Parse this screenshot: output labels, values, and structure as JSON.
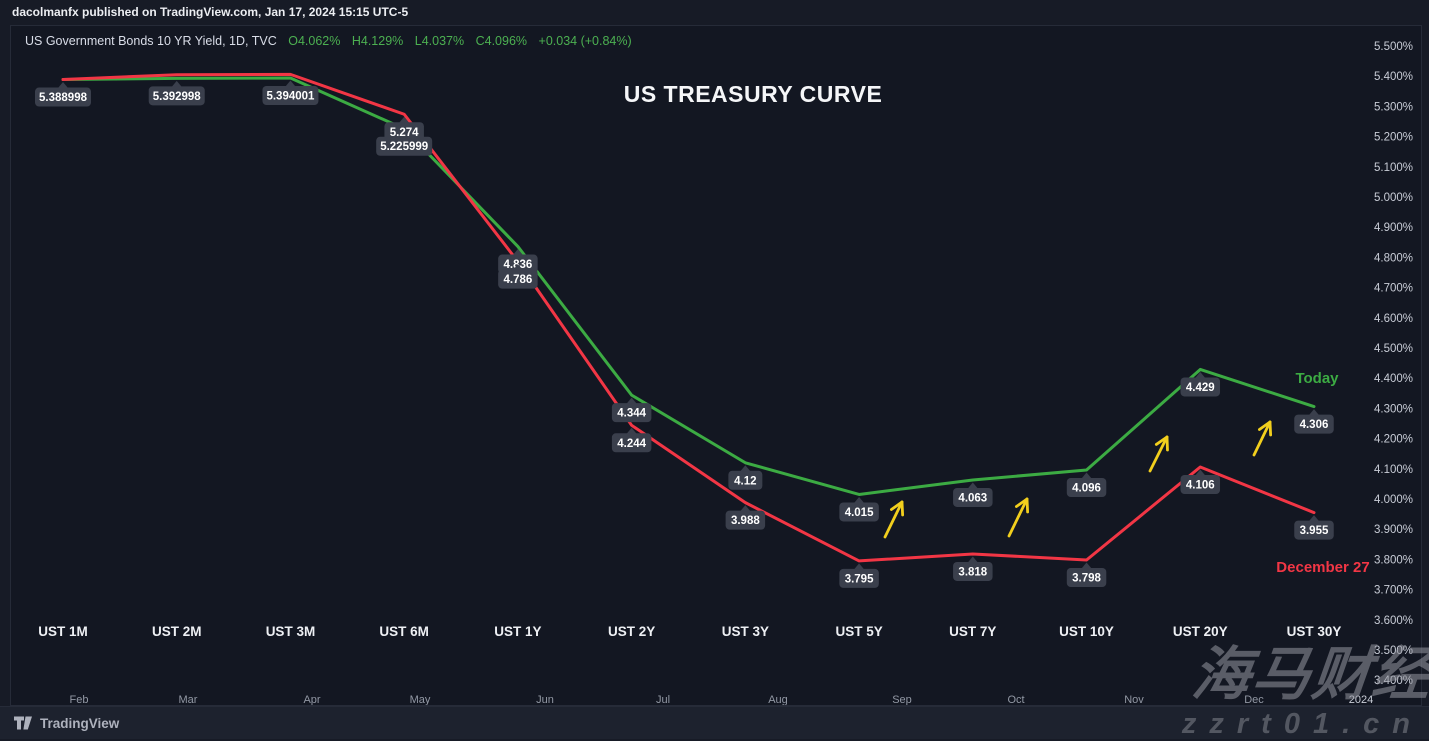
{
  "publisher_bar": {
    "text": "dacolmanfx published on TradingView.com, Jan 17, 2024 15:15 UTC-5"
  },
  "header": {
    "symbol": "US Government Bonds 10 YR Yield, 1D, TVC",
    "open": "O4.062%",
    "high": "H4.129%",
    "low": "L4.037%",
    "close": "C4.096%",
    "change": "+0.034 (+0.84%)"
  },
  "title": "US TREASURY CURVE",
  "chart_data": {
    "type": "line",
    "title": "US TREASURY CURVE",
    "categories": [
      "UST 1M",
      "UST 2M",
      "UST 3M",
      "UST 6M",
      "UST 1Y",
      "UST 2Y",
      "UST 3Y",
      "UST 5Y",
      "UST 7Y",
      "UST 10Y",
      "UST 20Y",
      "UST 30Y"
    ],
    "series": [
      {
        "name": "Today",
        "color": "#3cab43",
        "values": [
          5.388998,
          5.392998,
          5.394001,
          5.225999,
          4.836,
          4.344,
          4.12,
          4.015,
          4.063,
          4.096,
          4.429,
          4.306
        ],
        "point_labels": [
          "5.388998",
          "5.392998",
          "5.394001",
          "5.225999",
          "4.836",
          "4.344",
          "4.12",
          "4.015",
          "4.063",
          "4.096",
          "4.429",
          "4.306"
        ]
      },
      {
        "name": "December 27",
        "color": "#f23645",
        "values": [
          5.389,
          5.405,
          5.406,
          5.274,
          4.786,
          4.244,
          3.988,
          3.795,
          3.818,
          3.798,
          4.106,
          3.955
        ],
        "point_labels": [
          null,
          null,
          null,
          "5.274",
          "4.786",
          "4.244",
          "3.988",
          "3.795",
          "3.818",
          "3.798",
          "4.106",
          "3.955"
        ]
      }
    ],
    "y_axis": {
      "unit": "%",
      "min": 3.4,
      "max": 5.5,
      "ticks": [
        "5.500%",
        "5.400%",
        "5.300%",
        "5.200%",
        "5.100%",
        "5.000%",
        "4.900%",
        "4.800%",
        "4.700%",
        "4.600%",
        "4.500%",
        "4.400%",
        "4.300%",
        "4.200%",
        "4.100%",
        "4.000%",
        "3.900%",
        "3.800%",
        "3.700%",
        "3.600%",
        "3.500%",
        "3.400%"
      ]
    },
    "x_axis_secondary": [
      "Feb",
      "Mar",
      "Apr",
      "May",
      "Jun",
      "Jul",
      "Aug",
      "Sep",
      "Oct",
      "Nov",
      "Dec",
      "2024"
    ],
    "annotations": {
      "arrow_color": "#f2cf1d",
      "arrows": [
        {
          "tail": [
            874,
            511
          ],
          "tip": [
            891,
            476
          ]
        },
        {
          "tail": [
            998,
            510
          ],
          "tip": [
            1016,
            473
          ]
        },
        {
          "tail": [
            1139,
            445
          ],
          "tip": [
            1156,
            411
          ]
        },
        {
          "tail": [
            1243,
            429
          ],
          "tip": [
            1259,
            396
          ]
        }
      ]
    },
    "legend_position": "inline-right",
    "grid": false
  },
  "watermarks": {
    "cjk": "海马财经",
    "site": "zzrt01.cn"
  },
  "footer": {
    "brand": "TradingView"
  }
}
